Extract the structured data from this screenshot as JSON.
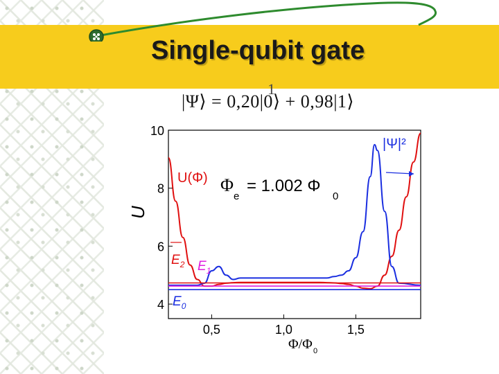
{
  "slide": {
    "title": "Single-qubit gate",
    "state_equation": "|Ψ⟩ = 0,20|0⟩ + 0,98|1⟩",
    "equation_fraction_numerator": "1",
    "colors": {
      "title_band": "#f7cc1c",
      "logo_line": "#2e8b2e"
    }
  },
  "chart_data": {
    "type": "line",
    "xlabel": "Φ/Φ0",
    "ylabel": "U",
    "xlim": [
      0.2,
      1.95
    ],
    "ylim": [
      3.5,
      10
    ],
    "x_ticks": [
      "0,5",
      "1,0",
      "1,5"
    ],
    "x_tick_values": [
      0.5,
      1.0,
      1.5
    ],
    "y_ticks": [
      "4",
      "6",
      "8",
      "10"
    ],
    "y_tick_values": [
      4,
      6,
      8,
      10
    ],
    "annotations": {
      "potential_label": "U(Φ)",
      "psi_label": "|Ψ|²",
      "flux_label_main": "Φ",
      "flux_label_sub": "e",
      "flux_label_value": "= 1.002 Φ",
      "flux_label_value_sub": "0",
      "E2": "E2",
      "E1": "E1",
      "E0": "E0"
    },
    "series": [
      {
        "name": "U(Φ)",
        "color": "#e01010",
        "x": [
          0.2,
          0.25,
          0.3,
          0.35,
          0.4,
          0.45,
          0.5,
          0.55,
          0.6,
          0.65,
          0.7,
          0.75,
          0.8,
          0.85,
          0.9,
          0.95,
          1.0,
          1.05,
          1.1,
          1.15,
          1.2,
          1.25,
          1.3,
          1.35,
          1.4,
          1.45,
          1.5,
          1.55,
          1.6,
          1.65,
          1.7,
          1.75,
          1.8,
          1.85,
          1.9,
          1.95
        ],
        "y": [
          9.05,
          7.55,
          6.3,
          5.35,
          4.85,
          4.62,
          4.62,
          4.68,
          4.72,
          4.74,
          4.75,
          4.75,
          4.75,
          4.75,
          4.75,
          4.75,
          4.75,
          4.75,
          4.75,
          4.75,
          4.75,
          4.75,
          4.74,
          4.73,
          4.71,
          4.68,
          4.62,
          4.55,
          4.53,
          4.62,
          5.0,
          5.65,
          6.55,
          7.7,
          8.9,
          9.9
        ]
      },
      {
        "name": "|Ψ|²",
        "color": "#1a2ee0",
        "x": [
          0.2,
          0.4,
          0.45,
          0.5,
          0.55,
          0.6,
          0.65,
          0.7,
          0.8,
          0.9,
          1.0,
          1.1,
          1.2,
          1.3,
          1.35,
          1.4,
          1.45,
          1.5,
          1.55,
          1.6,
          1.63,
          1.65,
          1.7,
          1.75,
          1.8,
          1.95
        ],
        "y": [
          4.65,
          4.65,
          4.72,
          5.15,
          5.3,
          5.0,
          4.85,
          4.9,
          4.9,
          4.9,
          4.9,
          4.9,
          4.9,
          4.9,
          4.95,
          5.0,
          5.15,
          5.6,
          6.5,
          8.4,
          9.5,
          9.3,
          7.2,
          5.3,
          4.72,
          4.65
        ]
      },
      {
        "name": "E0",
        "color": "#1a2ee0",
        "x": [
          0.2,
          1.95
        ],
        "y": [
          4.5,
          4.5
        ]
      },
      {
        "name": "E1",
        "color": "#e01ee0",
        "x": [
          0.2,
          1.95
        ],
        "y": [
          4.62,
          4.62
        ]
      },
      {
        "name": "E2",
        "color": "#e01010",
        "x": [
          0.2,
          1.95
        ],
        "y": [
          4.73,
          4.73
        ]
      }
    ]
  }
}
